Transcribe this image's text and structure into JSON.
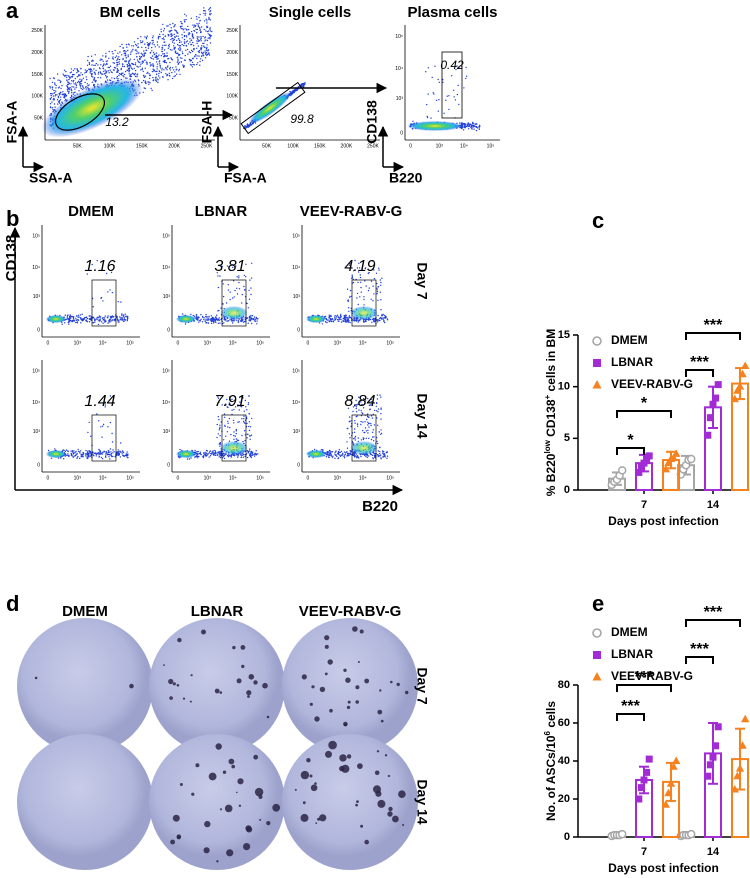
{
  "panels": {
    "a": {
      "label": "a",
      "plots": [
        {
          "title": "BM cells",
          "gate": 13.2,
          "ylabel": "FSA-A",
          "xlabel": "SSA-A",
          "scale": "linear"
        },
        {
          "title": "Single cells",
          "gate": 99.8,
          "ylabel": "FSA-H",
          "xlabel": "FSA-A",
          "scale": "linear"
        },
        {
          "title": "Plasma cells",
          "gate": 0.42,
          "ylabel": "CD138",
          "xlabel": "B220",
          "scale": "log"
        }
      ],
      "lin_ticks": [
        "50K",
        "100K",
        "150K",
        "200K",
        "250K"
      ],
      "log_ticks": [
        "0",
        "10³",
        "10⁴",
        "10⁵"
      ]
    },
    "b": {
      "label": "b",
      "columns": [
        "DMEM",
        "LBNAR",
        "VEEV-RABV-G"
      ],
      "rows": [
        "Day 7",
        "Day 14"
      ],
      "gates": [
        [
          1.16,
          3.81,
          4.19
        ],
        [
          1.44,
          7.91,
          8.84
        ]
      ],
      "ylabel": "CD138",
      "xlabel": "B220"
    },
    "d": {
      "label": "d",
      "columns": [
        "DMEM",
        "LBNAR",
        "VEEV-RABV-G"
      ],
      "rows": [
        "Day 7",
        "Day 14"
      ]
    }
  },
  "chart_data": [
    {
      "type": "bar",
      "label": "c",
      "categories": [
        "7",
        "14"
      ],
      "xlabel": "Days post infection",
      "ylabel": [
        {
          "text": "% B220"
        },
        {
          "text": "low",
          "sup": true
        },
        {
          "text": " CD138"
        },
        {
          "text": "+",
          "sup": true
        },
        {
          "text": " cells in BM"
        }
      ],
      "ylim": [
        0,
        15
      ],
      "yticks": [
        0,
        5,
        10,
        15
      ],
      "series": [
        {
          "name": "DMEM",
          "color": "#a6a6a6",
          "marker": "circle",
          "values": [
            1.1,
            2.4
          ],
          "errors": [
            0.6,
            0.9
          ],
          "points": [
            [
              0.5,
              0.8,
              1.0,
              1.4,
              1.9
            ],
            [
              1.5,
              2.0,
              2.4,
              2.9,
              3.0
            ]
          ]
        },
        {
          "name": "LBNAR",
          "color": "#a22bd6",
          "marker": "square",
          "values": [
            2.6,
            8.0
          ],
          "errors": [
            0.8,
            2.0
          ],
          "points": [
            [
              1.7,
              2.2,
              2.6,
              3.0,
              3.3
            ],
            [
              5.3,
              7.0,
              8.3,
              8.9,
              10.2
            ]
          ]
        },
        {
          "name": "VEEV-RABV-G",
          "color": "#f5821f",
          "marker": "triangle",
          "values": [
            2.9,
            10.3
          ],
          "errors": [
            0.8,
            1.5
          ],
          "points": [
            [
              2.0,
              2.6,
              3.0,
              3.1,
              3.5
            ],
            [
              8.8,
              9.6,
              10.0,
              11.2,
              12.0
            ]
          ]
        }
      ],
      "significance": [
        "*",
        "*",
        "***",
        "***"
      ]
    },
    {
      "type": "bar",
      "label": "e",
      "categories": [
        "7",
        "14"
      ],
      "xlabel": "Days post infection",
      "ylabel": [
        {
          "text": "No. of ASCs/10"
        },
        {
          "text": "6",
          "sup": true
        },
        {
          "text": " cells"
        }
      ],
      "ylim": [
        0,
        80
      ],
      "yticks": [
        0,
        20,
        40,
        60,
        80
      ],
      "series": [
        {
          "name": "DMEM",
          "color": "#a6a6a6",
          "marker": "circle",
          "values": [
            1,
            1
          ],
          "errors": [
            0.5,
            0.5
          ],
          "points": [
            [
              0.5,
              1,
              1,
              1,
              1.5
            ],
            [
              0.5,
              1,
              1,
              1,
              1.5
            ]
          ]
        },
        {
          "name": "LBNAR",
          "color": "#a22bd6",
          "marker": "square",
          "values": [
            30,
            44
          ],
          "errors": [
            7,
            16
          ],
          "points": [
            [
              20,
              26,
              30,
              34,
              41
            ],
            [
              32,
              38,
              42,
              48,
              58
            ]
          ]
        },
        {
          "name": "VEEV-RABV-G",
          "color": "#f5821f",
          "marker": "triangle",
          "values": [
            29,
            41
          ],
          "errors": [
            10,
            16
          ],
          "points": [
            [
              17,
              23,
              28,
              37,
              40
            ],
            [
              25,
              32,
              36,
              48,
              62
            ]
          ]
        }
      ],
      "significance": [
        "***",
        "***",
        "***",
        "***"
      ]
    }
  ]
}
